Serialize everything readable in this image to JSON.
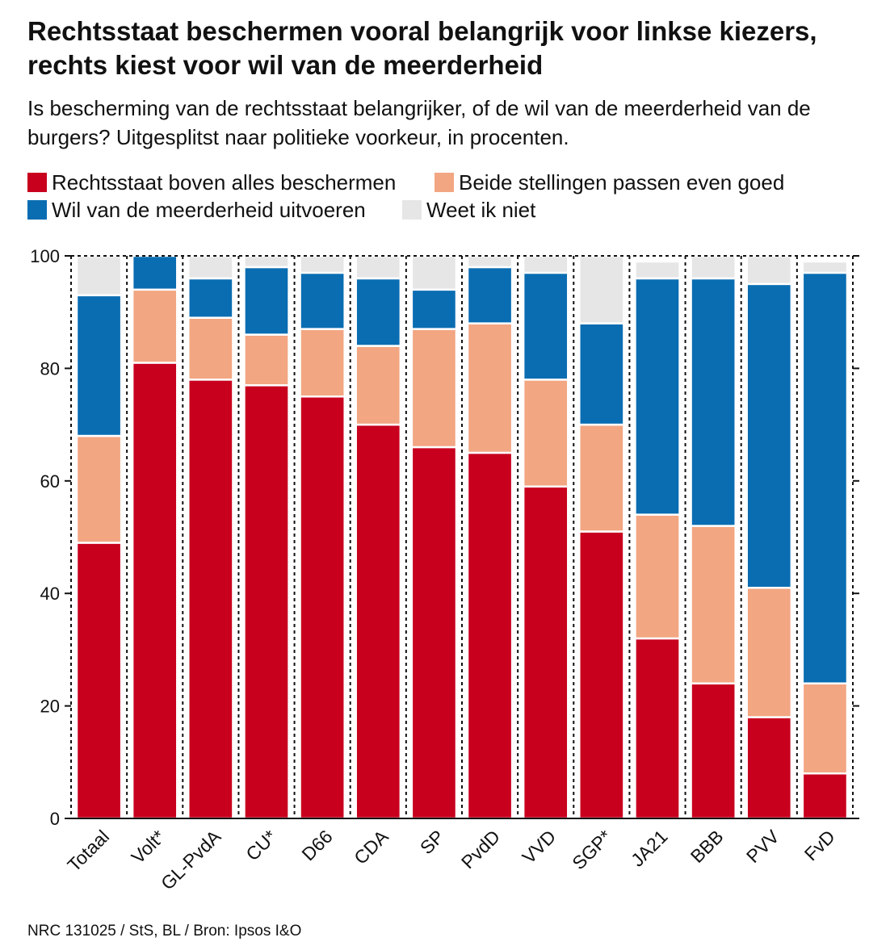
{
  "header": {
    "title": "Rechtsstaat beschermen vooral belangrijk voor linkse kiezers, rechts kiest voor wil van de meerderheid",
    "subtitle": "Is bescherming van de rechtsstaat belangrijker, of de wil van de meerderheid van de burgers? Uitgesplitst naar politieke voorkeur, in procenten."
  },
  "legend": {
    "items": [
      {
        "label": "Rechtsstaat boven alles beschermen",
        "color": "#c8001e"
      },
      {
        "label": "Beide stellingen passen even goed",
        "color": "#f2a682"
      },
      {
        "label": "Wil van de meerderheid uitvoeren",
        "color": "#0a6db2"
      },
      {
        "label": "Weet ik niet",
        "color": "#e6e6e6"
      }
    ]
  },
  "chart_data": {
    "type": "bar",
    "stacked": true,
    "categories": [
      "Totaal",
      "Volt*",
      "GL-PvdA",
      "CU*",
      "D66",
      "CDA",
      "SP",
      "PvdD",
      "VVD",
      "SGP*",
      "JA21",
      "BBB",
      "PVV",
      "FvD"
    ],
    "series": [
      {
        "name": "Rechtsstaat boven alles beschermen",
        "color": "#c8001e",
        "values": [
          49,
          81,
          78,
          77,
          75,
          70,
          66,
          65,
          59,
          51,
          32,
          24,
          18,
          8
        ]
      },
      {
        "name": "Beide stellingen passen even goed",
        "color": "#f2a682",
        "values": [
          19,
          13,
          11,
          9,
          12,
          14,
          21,
          23,
          19,
          19,
          22,
          28,
          23,
          16
        ]
      },
      {
        "name": "Wil van de meerderheid uitvoeren",
        "color": "#0a6db2",
        "values": [
          25,
          6,
          7,
          12,
          10,
          12,
          7,
          10,
          19,
          18,
          42,
          44,
          54,
          73
        ]
      },
      {
        "name": "Weet ik niet",
        "color": "#e6e6e6",
        "values": [
          7,
          0,
          4,
          2,
          3,
          4,
          6,
          2,
          3,
          12,
          3,
          4,
          5,
          2
        ]
      }
    ],
    "ylim": [
      0,
      100
    ],
    "yticks": [
      "0",
      "20",
      "40",
      "60",
      "80",
      "100"
    ],
    "grid": false,
    "legend_position": "top-left"
  },
  "footer": {
    "source": "NRC 131025 / StS, BL / Bron: Ipsos I&O"
  }
}
